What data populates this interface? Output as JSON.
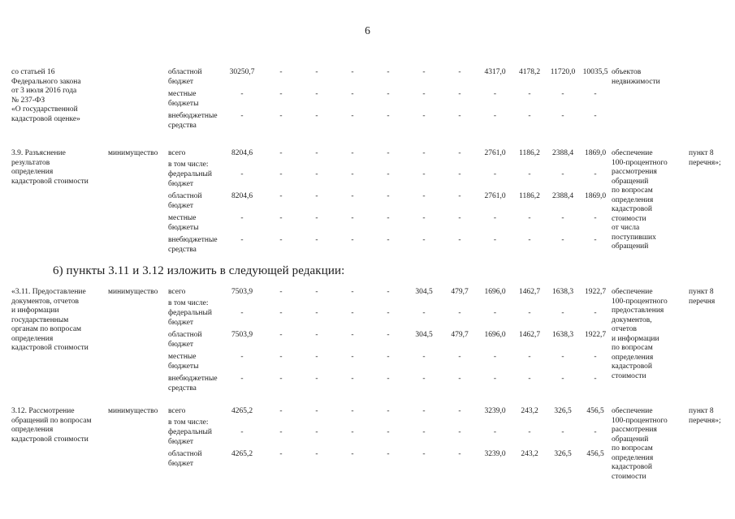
{
  "page": {
    "number": "6"
  },
  "amendment_heading": "6) пункты 3.11 и 3.12 изложить в следующей редакции:",
  "table": {
    "blocks": [
      {
        "item": "3.8-continuation",
        "label_lines": [
          "со статьей 16",
          "Федерального закона",
          "от 3 июля 2016 года",
          "№ 237-ФЗ",
          "«О государственной",
          "кадастровой оценке»"
        ],
        "executor": "",
        "rows": [
          {
            "budget_lines": [
              "областной",
              "бюджет"
            ],
            "values": [
              "30250,7",
              "-",
              "-",
              "-",
              "-",
              "-",
              "-",
              "4317,0",
              "4178,2",
              "11720,0",
              "10035,5"
            ]
          },
          {
            "budget_lines": [
              "местные",
              "бюджеты"
            ],
            "values": [
              "-",
              "-",
              "-",
              "-",
              "-",
              "-",
              "-",
              "-",
              "-",
              "-",
              "-"
            ]
          },
          {
            "budget_lines": [
              "внебюджетные",
              "средства"
            ],
            "values": [
              "-",
              "-",
              "-",
              "-",
              "-",
              "-",
              "-",
              "-",
              "-",
              "-",
              "-"
            ]
          }
        ],
        "annotation_lines": [
          "объектов",
          "недвижимости"
        ],
        "reference_lines": []
      },
      {
        "item": "3.9",
        "label_lines": [
          "3.9. Разъяснение",
          "результатов",
          "определения",
          "кадастровой стоимости"
        ],
        "executor": "минимущество",
        "rows": [
          {
            "budget_lines": [
              "всего"
            ],
            "values": [
              "8204,6",
              "-",
              "-",
              "-",
              "-",
              "-",
              "-",
              "2761,0",
              "1186,2",
              "2388,4",
              "1869,0"
            ]
          },
          {
            "budget_lines": [
              "в том числе:"
            ],
            "values": []
          },
          {
            "budget_lines": [
              "федеральный",
              "бюджет"
            ],
            "values": [
              "-",
              "-",
              "-",
              "-",
              "-",
              "-",
              "-",
              "-",
              "-",
              "-",
              "-"
            ]
          },
          {
            "budget_lines": [
              "областной",
              "бюджет"
            ],
            "values": [
              "8204,6",
              "-",
              "-",
              "-",
              "-",
              "-",
              "-",
              "2761,0",
              "1186,2",
              "2388,4",
              "1869,0"
            ]
          },
          {
            "budget_lines": [
              "местные",
              "бюджеты"
            ],
            "values": [
              "-",
              "-",
              "-",
              "-",
              "-",
              "-",
              "-",
              "-",
              "-",
              "-",
              "-"
            ]
          },
          {
            "budget_lines": [
              "внебюджетные",
              "средства"
            ],
            "values": [
              "-",
              "-",
              "-",
              "-",
              "-",
              "-",
              "-",
              "-",
              "-",
              "-",
              "-"
            ]
          }
        ],
        "annotation_lines": [
          "обеспечение",
          "100-процентного",
          "рассмотрения",
          "обращений",
          "по вопросам",
          "определения",
          "кадастровой",
          "стоимости",
          "от числа",
          "поступивших",
          "обращений"
        ],
        "reference_lines": [
          "пункт 8",
          "перечня»;"
        ]
      },
      {
        "item": "3.11",
        "label_lines": [
          "«3.11. Предоставление",
          "документов, отчетов",
          "и информации",
          "государственным",
          "органам по вопросам",
          "определения",
          "кадастровой стоимости"
        ],
        "executor": "минимущество",
        "rows": [
          {
            "budget_lines": [
              "всего"
            ],
            "values": [
              "7503,9",
              "-",
              "-",
              "-",
              "-",
              "304,5",
              "479,7",
              "1696,0",
              "1462,7",
              "1638,3",
              "1922,7"
            ]
          },
          {
            "budget_lines": [
              "в том числе:"
            ],
            "values": []
          },
          {
            "budget_lines": [
              "федеральный",
              "бюджет"
            ],
            "values": [
              "-",
              "-",
              "-",
              "-",
              "-",
              "-",
              "-",
              "-",
              "-",
              "-",
              "-"
            ]
          },
          {
            "budget_lines": [
              "областной",
              "бюджет"
            ],
            "values": [
              "7503,9",
              "-",
              "-",
              "-",
              "-",
              "304,5",
              "479,7",
              "1696,0",
              "1462,7",
              "1638,3",
              "1922,7"
            ]
          },
          {
            "budget_lines": [
              "местные",
              "бюджеты"
            ],
            "values": [
              "-",
              "-",
              "-",
              "-",
              "-",
              "-",
              "-",
              "-",
              "-",
              "-",
              "-"
            ]
          },
          {
            "budget_lines": [
              "внебюджетные",
              "средства"
            ],
            "values": [
              "-",
              "-",
              "-",
              "-",
              "-",
              "-",
              "-",
              "-",
              "-",
              "-",
              "-"
            ]
          }
        ],
        "annotation_lines": [
          "обеспечение",
          "100-процентного",
          "предоставления",
          "документов,",
          "отчетов",
          "и информации",
          "по вопросам",
          "определения",
          "кадастровой",
          "стоимости"
        ],
        "reference_lines": [
          "пункт 8",
          "перечня"
        ]
      },
      {
        "item": "3.12",
        "label_lines": [
          "3.12. Рассмотрение",
          "обращений по вопросам",
          "определения",
          "кадастровой стоимости"
        ],
        "executor": "минимущество",
        "rows": [
          {
            "budget_lines": [
              "всего"
            ],
            "values": [
              "4265,2",
              "-",
              "-",
              "-",
              "-",
              "-",
              "-",
              "3239,0",
              "243,2",
              "326,5",
              "456,5"
            ]
          },
          {
            "budget_lines": [
              "в том числе:"
            ],
            "values": []
          },
          {
            "budget_lines": [
              "федеральный",
              "бюджет"
            ],
            "values": [
              "-",
              "-",
              "-",
              "-",
              "-",
              "-",
              "-",
              "-",
              "-",
              "-",
              "-"
            ]
          },
          {
            "budget_lines": [
              "областной",
              "бюджет"
            ],
            "values": [
              "4265,2",
              "-",
              "-",
              "-",
              "-",
              "-",
              "-",
              "3239,0",
              "243,2",
              "326,5",
              "456,5"
            ]
          }
        ],
        "annotation_lines": [
          "обеспечение",
          "100-процентного",
          "рассмотрения",
          "обращений",
          "по вопросам",
          "определения",
          "кадастровой",
          "стоимости"
        ],
        "reference_lines": [
          "пункт 8",
          "перечня»;"
        ]
      }
    ]
  }
}
